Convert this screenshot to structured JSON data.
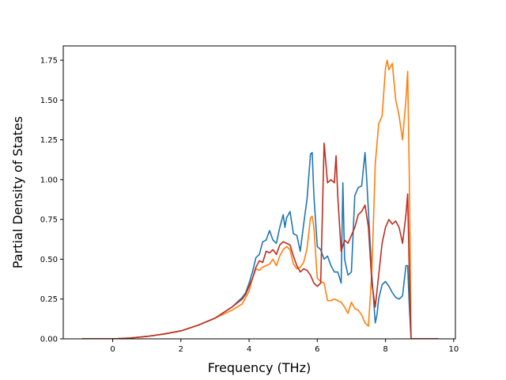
{
  "chart_data": {
    "type": "line",
    "xlabel": "Frequency (THz)",
    "ylabel": "Partial Density of States",
    "xlim": [
      -1.45,
      10.05
    ],
    "ylim": [
      0,
      1.84
    ],
    "xticks": [
      0,
      2,
      4,
      6,
      8,
      10
    ],
    "yticks": [
      0.0,
      0.25,
      0.5,
      0.75,
      1.0,
      1.25,
      1.5,
      1.75
    ],
    "xtick_labels": [
      "0",
      "2",
      "4",
      "6",
      "8",
      "10"
    ],
    "ytick_labels": [
      "0.00",
      "0.25",
      "0.50",
      "0.75",
      "1.00",
      "1.25",
      "1.50",
      "1.75"
    ],
    "grid": false,
    "legend": "none",
    "series": [
      {
        "color": "#1f77b4",
        "x": [
          -0.9,
          -0.5,
          0.0,
          0.5,
          1.0,
          1.5,
          2.0,
          2.5,
          3.0,
          3.5,
          3.8,
          3.9,
          4.0,
          4.1,
          4.2,
          4.3,
          4.4,
          4.5,
          4.6,
          4.7,
          4.8,
          4.9,
          5.0,
          5.05,
          5.1,
          5.2,
          5.3,
          5.4,
          5.5,
          5.6,
          5.7,
          5.8,
          5.85,
          5.9,
          6.0,
          6.1,
          6.2,
          6.3,
          6.4,
          6.5,
          6.6,
          6.7,
          6.75,
          6.8,
          6.9,
          7.0,
          7.1,
          7.2,
          7.3,
          7.4,
          7.45,
          7.5,
          7.6,
          7.7,
          7.75,
          7.8,
          7.9,
          8.0,
          8.1,
          8.2,
          8.3,
          8.4,
          8.5,
          8.6,
          8.65,
          8.7,
          8.75,
          9.0,
          9.56
        ],
        "y": [
          0.0,
          0.0,
          0.0,
          0.005,
          0.015,
          0.03,
          0.05,
          0.085,
          0.13,
          0.2,
          0.26,
          0.29,
          0.35,
          0.42,
          0.51,
          0.53,
          0.61,
          0.62,
          0.68,
          0.62,
          0.6,
          0.7,
          0.78,
          0.7,
          0.76,
          0.8,
          0.66,
          0.65,
          0.55,
          0.72,
          0.88,
          1.16,
          1.17,
          0.9,
          0.58,
          0.56,
          0.5,
          0.52,
          0.46,
          0.42,
          0.42,
          0.35,
          0.98,
          0.5,
          0.4,
          0.42,
          0.9,
          0.95,
          0.96,
          1.17,
          1.0,
          0.8,
          0.4,
          0.1,
          0.15,
          0.25,
          0.34,
          0.36,
          0.33,
          0.29,
          0.26,
          0.25,
          0.27,
          0.46,
          0.46,
          0.2,
          0.0,
          0.0,
          0.0
        ]
      },
      {
        "color": "#ff7f0e",
        "x": [
          -0.9,
          -0.5,
          0.0,
          0.5,
          1.0,
          1.5,
          2.0,
          2.5,
          3.0,
          3.5,
          3.8,
          3.9,
          4.0,
          4.1,
          4.2,
          4.3,
          4.4,
          4.5,
          4.6,
          4.7,
          4.8,
          4.9,
          5.0,
          5.1,
          5.2,
          5.3,
          5.4,
          5.5,
          5.6,
          5.7,
          5.8,
          5.85,
          5.9,
          6.0,
          6.1,
          6.2,
          6.3,
          6.4,
          6.5,
          6.6,
          6.7,
          6.8,
          6.9,
          7.0,
          7.1,
          7.2,
          7.3,
          7.4,
          7.5,
          7.6,
          7.7,
          7.8,
          7.9,
          8.0,
          8.05,
          8.1,
          8.2,
          8.3,
          8.4,
          8.5,
          8.6,
          8.65,
          8.7,
          8.75,
          9.0,
          9.56
        ],
        "y": [
          0.0,
          0.0,
          0.0,
          0.005,
          0.015,
          0.03,
          0.05,
          0.085,
          0.13,
          0.18,
          0.22,
          0.26,
          0.3,
          0.38,
          0.44,
          0.43,
          0.45,
          0.46,
          0.47,
          0.5,
          0.46,
          0.52,
          0.56,
          0.58,
          0.56,
          0.47,
          0.44,
          0.45,
          0.48,
          0.57,
          0.76,
          0.77,
          0.7,
          0.38,
          0.36,
          0.35,
          0.24,
          0.24,
          0.25,
          0.24,
          0.23,
          0.2,
          0.16,
          0.23,
          0.19,
          0.18,
          0.15,
          0.1,
          0.08,
          0.42,
          1.1,
          1.35,
          1.4,
          1.7,
          1.75,
          1.69,
          1.73,
          1.5,
          1.4,
          1.25,
          1.5,
          1.68,
          1.0,
          0.0,
          0.0,
          0.0
        ]
      },
      {
        "color": "#be2d1f",
        "x": [
          -0.9,
          -0.5,
          0.0,
          0.5,
          1.0,
          1.5,
          2.0,
          2.5,
          3.0,
          3.5,
          3.8,
          3.9,
          4.0,
          4.1,
          4.2,
          4.3,
          4.4,
          4.5,
          4.6,
          4.7,
          4.8,
          4.9,
          5.0,
          5.1,
          5.2,
          5.3,
          5.4,
          5.5,
          5.6,
          5.7,
          5.8,
          5.9,
          6.0,
          6.1,
          6.2,
          6.3,
          6.4,
          6.5,
          6.55,
          6.6,
          6.7,
          6.8,
          6.9,
          7.0,
          7.1,
          7.2,
          7.3,
          7.4,
          7.5,
          7.6,
          7.7,
          7.8,
          7.9,
          8.0,
          8.1,
          8.2,
          8.3,
          8.4,
          8.5,
          8.6,
          8.65,
          8.7,
          8.75,
          9.0,
          9.56
        ],
        "y": [
          0.0,
          0.0,
          0.0,
          0.005,
          0.015,
          0.03,
          0.05,
          0.085,
          0.13,
          0.2,
          0.25,
          0.28,
          0.33,
          0.38,
          0.45,
          0.49,
          0.48,
          0.55,
          0.54,
          0.56,
          0.53,
          0.59,
          0.61,
          0.6,
          0.59,
          0.52,
          0.46,
          0.42,
          0.44,
          0.43,
          0.4,
          0.35,
          0.33,
          0.35,
          1.23,
          0.98,
          1.0,
          0.98,
          1.15,
          0.9,
          0.55,
          0.62,
          0.6,
          0.65,
          0.7,
          0.78,
          0.8,
          0.84,
          0.7,
          0.35,
          0.2,
          0.4,
          0.6,
          0.7,
          0.75,
          0.72,
          0.74,
          0.7,
          0.6,
          0.78,
          0.91,
          0.4,
          0.0,
          0.0,
          0.0
        ]
      }
    ]
  }
}
